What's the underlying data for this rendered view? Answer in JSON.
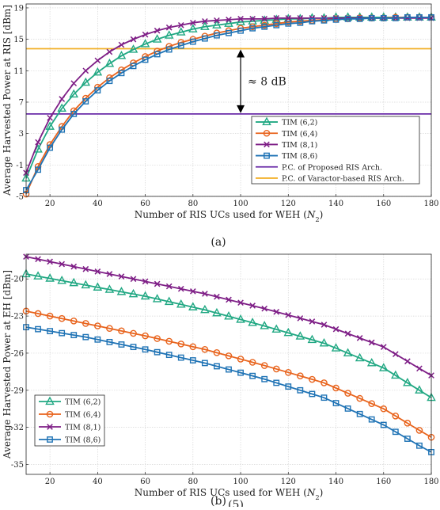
{
  "figure": {
    "caption_a": "(a)",
    "caption_b": "(b)",
    "stray_text": "(5)"
  },
  "chart_data": [
    {
      "type": "line",
      "id": "a",
      "title": "",
      "xlabel": "Number of RIS UCs used for WEH (N2)",
      "xlabel_main": "Number of RIS UCs used for WEH (",
      "xlabel_var": "N",
      "xlabel_sub": "2",
      "xlabel_close": ")",
      "ylabel": "Average Harvested Power at RIS [dBm]",
      "xlim": [
        10,
        180
      ],
      "ylim": [
        -5,
        19.5
      ],
      "xticks": [
        20,
        40,
        60,
        80,
        100,
        120,
        140,
        160,
        180
      ],
      "yticks": [
        -5,
        -1,
        3,
        7,
        11,
        15,
        19
      ],
      "grid": true,
      "legend_position": "bottom-right",
      "annotation": "≈ 8 dB",
      "annotation_x": 100,
      "annotation_from": 5.5,
      "annotation_to": 13.8,
      "x": [
        10,
        15,
        20,
        25,
        30,
        35,
        40,
        45,
        50,
        55,
        60,
        65,
        70,
        75,
        80,
        85,
        90,
        95,
        100,
        105,
        110,
        115,
        120,
        125,
        130,
        135,
        140,
        145,
        150,
        155,
        160,
        165,
        170,
        175,
        180
      ],
      "series": [
        {
          "name": "TIM (6,2)",
          "marker": "triangle",
          "color": "#21a883",
          "values": [
            -2.7,
            1.0,
            3.9,
            6.2,
            8.0,
            9.5,
            10.8,
            11.9,
            12.9,
            13.7,
            14.4,
            15.0,
            15.5,
            15.9,
            16.3,
            16.6,
            16.8,
            17.0,
            17.2,
            17.3,
            17.4,
            17.5,
            17.6,
            17.6,
            17.7,
            17.7,
            17.8,
            17.8,
            17.8,
            17.8,
            17.8,
            17.8,
            17.8,
            17.8,
            17.8
          ]
        },
        {
          "name": "TIM (6,4)",
          "marker": "circle",
          "color": "#e8631c",
          "values": [
            -4.7,
            -1.2,
            1.6,
            3.9,
            5.9,
            7.5,
            8.9,
            10.1,
            11.1,
            12.0,
            12.8,
            13.5,
            14.1,
            14.6,
            15.0,
            15.4,
            15.8,
            16.1,
            16.4,
            16.6,
            16.8,
            17.0,
            17.2,
            17.3,
            17.4,
            17.5,
            17.6,
            17.6,
            17.7,
            17.7,
            17.7,
            17.8,
            17.8,
            17.8,
            17.8
          ]
        },
        {
          "name": "TIM (8,1)",
          "marker": "x",
          "color": "#7e1e86",
          "values": [
            -2.0,
            1.9,
            5.0,
            7.4,
            9.4,
            11.0,
            12.3,
            13.4,
            14.3,
            15.0,
            15.6,
            16.1,
            16.5,
            16.8,
            17.1,
            17.3,
            17.4,
            17.5,
            17.6,
            17.6,
            17.6,
            17.7,
            17.7,
            17.7,
            17.7,
            17.7,
            17.7,
            17.7,
            17.7,
            17.7,
            17.7,
            17.7,
            17.7,
            17.7,
            17.7
          ]
        },
        {
          "name": "TIM (8,6)",
          "marker": "square",
          "color": "#1f73b5",
          "values": [
            -4.2,
            -1.6,
            1.2,
            3.5,
            5.5,
            7.1,
            8.5,
            9.7,
            10.7,
            11.6,
            12.4,
            13.1,
            13.7,
            14.2,
            14.7,
            15.1,
            15.5,
            15.8,
            16.1,
            16.4,
            16.6,
            16.8,
            17.0,
            17.1,
            17.3,
            17.4,
            17.5,
            17.6,
            17.6,
            17.7,
            17.7,
            17.7,
            17.8,
            17.8,
            17.8
          ]
        },
        {
          "name": "P.C. of Proposed RIS Arch.",
          "marker": "none",
          "color": "#6a2ca8",
          "hline": 5.5
        },
        {
          "name": "P.C. of Varactor-based RIS Arch.",
          "marker": "none",
          "color": "#f2b02a",
          "hline": 13.8
        }
      ]
    },
    {
      "type": "line",
      "id": "b",
      "title": "",
      "xlabel": "Number of RIS UCs used for WEH (N2)",
      "xlabel_main": "Number of RIS UCs used for WEH (",
      "xlabel_var": "N",
      "xlabel_sub": "2",
      "xlabel_close": ")",
      "ylabel": "Average Harvested Power at EH [dBm]",
      "xlim": [
        10,
        180
      ],
      "ylim": [
        -35.8,
        -18
      ],
      "xticks": [
        20,
        40,
        60,
        80,
        100,
        120,
        140,
        160,
        180
      ],
      "yticks": [
        -35,
        -32,
        -29,
        -26,
        -23,
        -20
      ],
      "grid": true,
      "legend_position": "bottom-left",
      "x": [
        10,
        15,
        20,
        25,
        30,
        35,
        40,
        45,
        50,
        55,
        60,
        65,
        70,
        75,
        80,
        85,
        90,
        95,
        100,
        105,
        110,
        115,
        120,
        125,
        130,
        135,
        140,
        145,
        150,
        155,
        160,
        165,
        170,
        175,
        180
      ],
      "series": [
        {
          "name": "TIM (6,2)",
          "marker": "triangle",
          "color": "#21a883",
          "values": [
            -19.6,
            -19.78,
            -19.96,
            -20.14,
            -20.32,
            -20.5,
            -20.68,
            -20.86,
            -21.04,
            -21.22,
            -21.4,
            -21.62,
            -21.84,
            -22.06,
            -22.28,
            -22.5,
            -22.76,
            -23.02,
            -23.28,
            -23.54,
            -23.8,
            -24.08,
            -24.36,
            -24.64,
            -24.92,
            -25.2,
            -25.6,
            -26.0,
            -26.4,
            -26.8,
            -27.2,
            -27.8,
            -28.4,
            -29.0,
            -29.6
          ]
        },
        {
          "name": "TIM (6,4)",
          "marker": "circle",
          "color": "#e8631c",
          "values": [
            -22.6,
            -22.8,
            -23.0,
            -23.2,
            -23.4,
            -23.6,
            -23.8,
            -24.0,
            -24.2,
            -24.4,
            -24.6,
            -24.82,
            -25.04,
            -25.26,
            -25.48,
            -25.7,
            -25.96,
            -26.22,
            -26.48,
            -26.74,
            -27.0,
            -27.28,
            -27.56,
            -27.84,
            -28.12,
            -28.4,
            -28.82,
            -29.24,
            -29.66,
            -30.08,
            -30.5,
            -31.08,
            -31.66,
            -32.24,
            -32.8
          ]
        },
        {
          "name": "TIM (8,1)",
          "marker": "x",
          "color": "#7e1e86",
          "values": [
            -18.2,
            -18.4,
            -18.6,
            -18.8,
            -19.0,
            -19.2,
            -19.4,
            -19.6,
            -19.8,
            -20.0,
            -20.2,
            -20.4,
            -20.6,
            -20.8,
            -21.0,
            -21.2,
            -21.44,
            -21.68,
            -21.92,
            -22.16,
            -22.4,
            -22.66,
            -22.92,
            -23.18,
            -23.44,
            -23.7,
            -24.06,
            -24.42,
            -24.78,
            -25.14,
            -25.5,
            -26.08,
            -26.66,
            -27.24,
            -27.8
          ]
        },
        {
          "name": "TIM (8,6)",
          "marker": "square",
          "color": "#1f73b5",
          "values": [
            -23.9,
            -24.06,
            -24.22,
            -24.38,
            -24.54,
            -24.7,
            -24.9,
            -25.1,
            -25.3,
            -25.5,
            -25.7,
            -25.92,
            -26.14,
            -26.36,
            -26.58,
            -26.8,
            -27.06,
            -27.32,
            -27.58,
            -27.84,
            -28.1,
            -28.4,
            -28.7,
            -29.0,
            -29.3,
            -29.6,
            -30.04,
            -30.48,
            -30.92,
            -31.36,
            -31.8,
            -32.36,
            -32.92,
            -33.48,
            -34.0
          ]
        }
      ]
    }
  ]
}
